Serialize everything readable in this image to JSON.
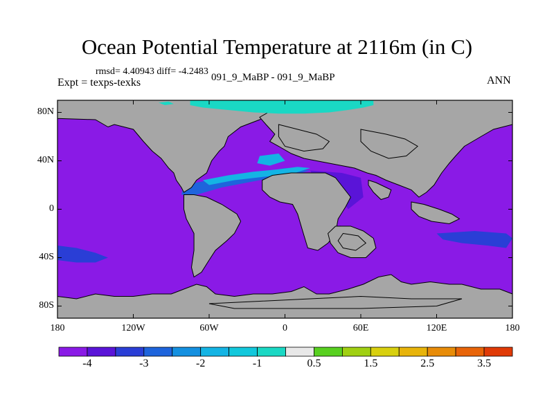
{
  "title": "Ocean Potential Temperature at 2116m (in C)",
  "stats_text": "rmsd= 4.40943 diff= -4.2483",
  "left_label": "Expt = texps-texks",
  "center_label": "091_9_MaBP - 091_9_MaBP",
  "right_label": "ANN",
  "x_ticks": [
    {
      "lon": -180,
      "label": "180"
    },
    {
      "lon": -120,
      "label": "120W"
    },
    {
      "lon": -60,
      "label": "60W"
    },
    {
      "lon": 0,
      "label": "0"
    },
    {
      "lon": 60,
      "label": "60E"
    },
    {
      "lon": 120,
      "label": "120E"
    },
    {
      "lon": 180,
      "label": "180"
    }
  ],
  "y_ticks": [
    {
      "lat": 80,
      "label": "80N"
    },
    {
      "lat": 40,
      "label": "40N"
    },
    {
      "lat": 0,
      "label": "0"
    },
    {
      "lat": -40,
      "label": "40S"
    },
    {
      "lat": -80,
      "label": "80S"
    }
  ],
  "colorbar": {
    "colors": [
      "#8a1ae6",
      "#5a14d8",
      "#2a3ed6",
      "#1e64dc",
      "#1490e0",
      "#14b4e4",
      "#12c8dc",
      "#1ad8c4",
      "#e8e8e8",
      "#58d020",
      "#a0d012",
      "#d8d00e",
      "#e8b40a",
      "#e88c08",
      "#e86408",
      "#e03a06"
    ],
    "labels": [
      {
        "edge": 1,
        "text": "-4"
      },
      {
        "edge": 3,
        "text": "-3"
      },
      {
        "edge": 5,
        "text": "-2"
      },
      {
        "edge": 7,
        "text": "-1"
      },
      {
        "edge": 9,
        "text": "0.5"
      },
      {
        "edge": 11,
        "text": "1.5"
      },
      {
        "edge": 13,
        "text": "2.5"
      },
      {
        "edge": 15,
        "text": "3.5"
      }
    ]
  },
  "map": {
    "ocean_color": "#8a1ae6",
    "land_color": "#a6a6a6",
    "coast_color": "#000000",
    "anomaly_levels": {
      "arctic": "#1ad8c4",
      "tethys": "#14b4e4",
      "tethys_edge": "#1e64dc",
      "indian": "#5a14d8",
      "pacific": "#2a3ed6"
    }
  }
}
